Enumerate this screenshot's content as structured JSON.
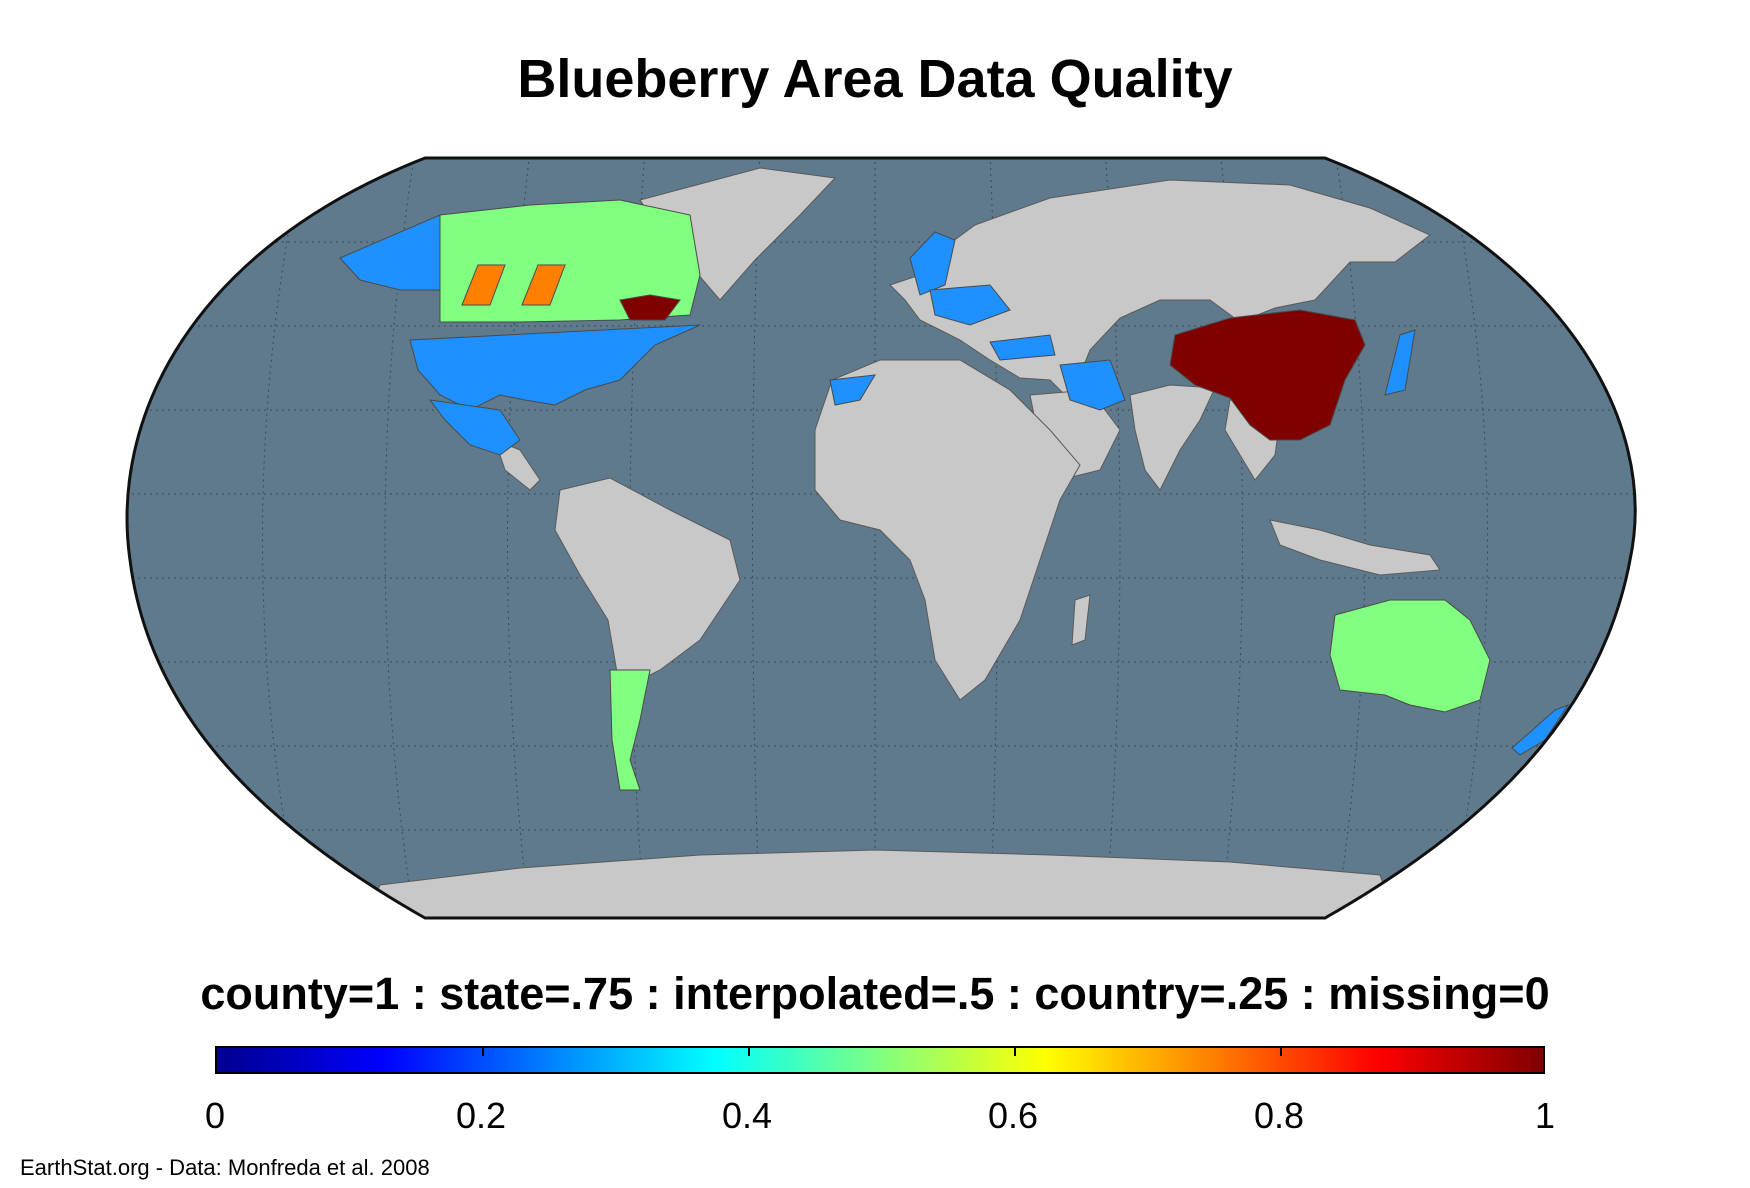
{
  "title": "Blueberry Area Data Quality",
  "legend": {
    "caption": "county=1 : state=.75 : interpolated=.5 : country=.25 : missing=0",
    "ticks": [
      "0",
      "0.2",
      "0.4",
      "0.6",
      "0.8",
      "1"
    ],
    "range": [
      0,
      1
    ],
    "colormap": "jet"
  },
  "credit": "EarthStat.org - Data: Monfreda et al. 2008",
  "colors": {
    "ocean": "#5e7a8c",
    "land_missing": "#c8c8c8",
    "quality_county": "#800000",
    "quality_state_orange": "#ff8000",
    "quality_interpolated": "#80ff80",
    "quality_country": "#1e90ff"
  }
}
